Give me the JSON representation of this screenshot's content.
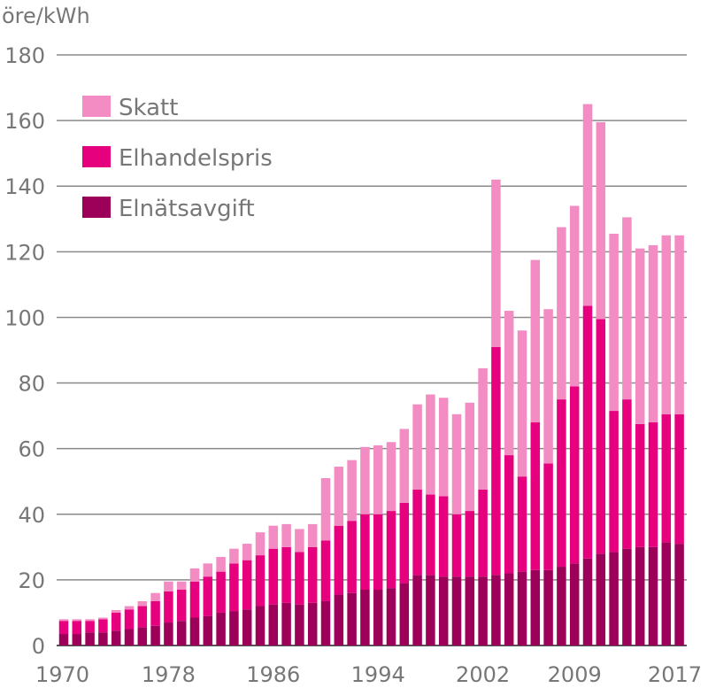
{
  "chart_data": {
    "type": "bar",
    "stacked": true,
    "unit_label": "öre/kWh",
    "ylim": [
      0,
      180
    ],
    "y_ticks": [
      "0",
      "20",
      "40",
      "60",
      "80",
      "100",
      "120",
      "140",
      "160",
      "180"
    ],
    "x_tick_labels": [
      "1970",
      "1978",
      "1986",
      "1994",
      "2002",
      "2009",
      "2017"
    ],
    "grid": true,
    "legend_position": "top-left",
    "categories": [
      1970,
      1971,
      1972,
      1973,
      1974,
      1975,
      1976,
      1977,
      1978,
      1979,
      1980,
      1981,
      1982,
      1983,
      1984,
      1985,
      1986,
      1987,
      1988,
      1989,
      1990,
      1991,
      1992,
      1993,
      1994,
      1995,
      1996,
      1997,
      1998,
      1999,
      2000,
      2001,
      2002,
      2003,
      2004,
      2005,
      2006,
      2007,
      2008,
      2009,
      2010,
      2011,
      2012,
      2013,
      2014,
      2015,
      2016,
      2017
    ],
    "series": [
      {
        "name": "Elnätsavgift",
        "color": "#9c0058",
        "values": [
          3.5,
          3.5,
          4,
          4,
          4.5,
          5,
          5.5,
          6,
          7,
          7.5,
          8.5,
          9,
          10,
          10.5,
          11,
          12,
          12.5,
          13,
          12.5,
          13,
          13.5,
          15.5,
          16,
          17,
          17,
          17.5,
          19,
          21.5,
          21.5,
          21,
          21,
          21,
          21,
          21.5,
          22,
          22.5,
          23,
          23,
          24,
          25,
          26.5,
          28,
          28.5,
          29.5,
          30,
          30,
          31.5,
          31
        ]
      },
      {
        "name": "Elhandelspris",
        "color": "#e6007e",
        "values": [
          4,
          4,
          3.5,
          4,
          5.5,
          6,
          6.5,
          7.5,
          9.5,
          9.5,
          11,
          12,
          12.5,
          14.5,
          15,
          15.5,
          17,
          17,
          16,
          17,
          18.5,
          21,
          22,
          23,
          23,
          23.5,
          24.5,
          26,
          24.5,
          24.5,
          19,
          20,
          26.5,
          69.5,
          36,
          29,
          45,
          32.5,
          51,
          54,
          77,
          71.5,
          43,
          45.5,
          37.5,
          38,
          39,
          39.5
        ]
      },
      {
        "name": "Skatt",
        "color": "#f28cc2",
        "values": [
          0.5,
          0.5,
          0.5,
          0.5,
          0.8,
          1,
          1.5,
          2.5,
          3,
          2.5,
          4,
          4,
          4.5,
          4.5,
          5,
          7,
          7,
          7,
          7,
          7,
          19,
          18,
          18.5,
          20.5,
          21,
          21,
          22.5,
          26,
          30.5,
          30,
          30.5,
          33,
          37,
          51,
          44,
          44.5,
          49.5,
          47,
          52.5,
          55,
          61.5,
          60,
          54,
          55.5,
          53.5,
          54,
          54.5,
          54.5
        ]
      }
    ]
  }
}
